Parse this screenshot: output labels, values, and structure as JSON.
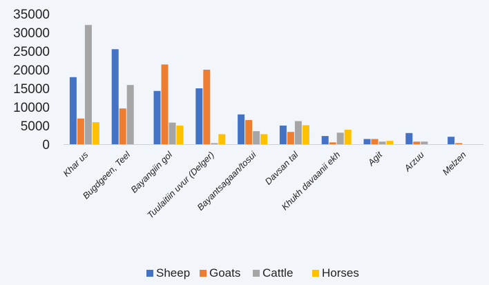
{
  "chart_data": {
    "type": "bar",
    "categories": [
      "Khar us",
      "Bugdgeen, Teel",
      "Bayangiin gol",
      "Tuulaitiin uvur (Delger)",
      "Bayantsagaan/tosui",
      "Davsan tal",
      "Khukh davaanii ekh",
      "Agit",
      "Arzuu",
      "Melzen"
    ],
    "series": [
      {
        "name": "Sheep",
        "color": "#4472c4",
        "values": [
          18000,
          25500,
          14300,
          15000,
          8000,
          5000,
          2200,
          1400,
          3000,
          2000
        ]
      },
      {
        "name": "Goats",
        "color": "#ed7d31",
        "values": [
          6900,
          9600,
          21400,
          20000,
          6500,
          3300,
          500,
          1400,
          700,
          300
        ]
      },
      {
        "name": "Cattle",
        "color": "#a5a5a5",
        "values": [
          32000,
          15900,
          5800,
          300,
          3500,
          6200,
          3100,
          700,
          700,
          0
        ]
      },
      {
        "name": "Horses",
        "color": "#ffc000",
        "values": [
          5900,
          0,
          5000,
          2700,
          2700,
          5100,
          3900,
          900,
          0,
          0
        ]
      }
    ],
    "y_ticks": [
      "0",
      "5000",
      "10000",
      "15000",
      "20000",
      "25000",
      "30000",
      "35000"
    ],
    "ylim": [
      0,
      35000
    ],
    "grid": false,
    "legend_position": "bottom"
  }
}
